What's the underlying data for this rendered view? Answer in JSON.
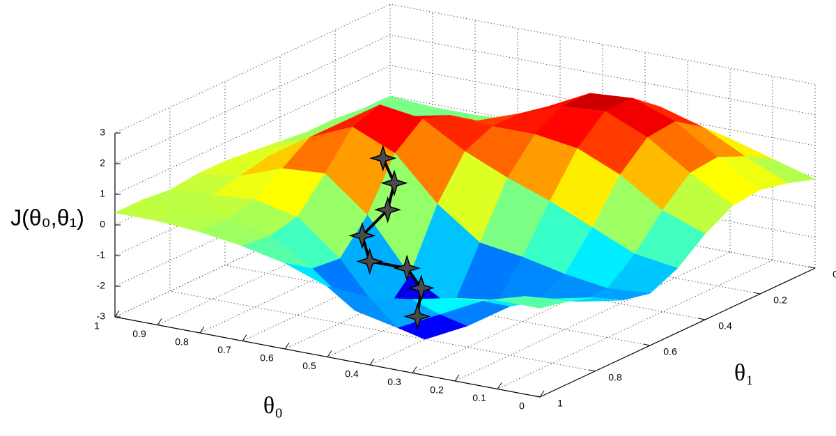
{
  "chart_data": {
    "type": "surface",
    "colormap": "jet",
    "zlabel": "J(θ₀,θ₁)",
    "xlabel": "θ₀",
    "ylabel": "θ₁",
    "x": [
      0,
      0.1,
      0.2,
      0.3,
      0.4,
      0.5,
      0.6,
      0.7,
      0.8,
      0.9,
      1
    ],
    "y": [
      0,
      0.1,
      0.2,
      0.3,
      0.4,
      0.5,
      0.6,
      0.7,
      0.8,
      0.9,
      1
    ],
    "z": [
      [
        -0.1,
        0.2,
        0.4,
        0.3,
        -0.2,
        -0.9,
        -1.3,
        -1.1,
        -0.6,
        -0.3,
        -0.1
      ],
      [
        0.3,
        0.8,
        1.2,
        1.1,
        0.3,
        -0.7,
        -1.4,
        -1.4,
        -0.9,
        -0.4,
        -0.1
      ],
      [
        0.7,
        1.5,
        2.1,
        2.0,
        1.2,
        -0.1,
        -1.2,
        -1.6,
        -1.4,
        -0.8,
        -0.3
      ],
      [
        1.0,
        1.9,
        2.6,
        2.6,
        1.8,
        0.5,
        -0.9,
        -2.1,
        -2.3,
        -1.5,
        -0.6
      ],
      [
        0.9,
        1.8,
        2.5,
        2.5,
        2.0,
        1.0,
        -0.7,
        -2.4,
        -3.0,
        -2.2,
        -0.8
      ],
      [
        0.6,
        1.3,
        1.8,
        2.0,
        2.0,
        1.6,
        0.3,
        -1.6,
        -2.5,
        -1.9,
        -0.7
      ],
      [
        0.3,
        0.7,
        1.1,
        1.5,
        2.1,
        2.4,
        1.7,
        0.1,
        -0.9,
        -0.8,
        -0.2
      ],
      [
        0.0,
        0.2,
        0.5,
        1.0,
        1.8,
        2.6,
        2.3,
        1.2,
        0.2,
        0.0,
        0.1
      ],
      [
        -0.1,
        0.0,
        0.2,
        0.5,
        1.1,
        1.7,
        1.7,
        1.1,
        0.5,
        0.3,
        0.3
      ],
      [
        -0.1,
        0.0,
        0.1,
        0.2,
        0.5,
        0.8,
        0.8,
        0.6,
        0.4,
        0.3,
        0.4
      ],
      [
        0.0,
        0.0,
        0.1,
        0.1,
        0.2,
        0.3,
        0.4,
        0.4,
        0.3,
        0.4,
        0.4
      ]
    ],
    "path": {
      "color": "#000000",
      "marker_color": "#4a4a4a",
      "x": [
        0.57,
        0.55,
        0.52,
        0.58,
        0.53,
        0.52,
        0.48,
        0.45
      ],
      "y": [
        0.69,
        0.68,
        0.75,
        0.75,
        0.8,
        0.68,
        0.69,
        0.75
      ],
      "z": [
        2.0,
        1.2,
        0.7,
        -0.3,
        -0.8,
        -1.5,
        -2.0,
        -2.6
      ]
    },
    "xlim": [
      0,
      1
    ],
    "ylim": [
      0,
      1
    ],
    "zlim": [
      -3,
      3
    ],
    "xticks": [
      0,
      0.1,
      0.2,
      0.3,
      0.4,
      0.5,
      0.6,
      0.7,
      0.8,
      0.9,
      1
    ],
    "yticks": [
      0,
      0.2,
      0.4,
      0.6,
      0.8,
      1
    ],
    "zticks": [
      -3,
      -2,
      -1,
      0,
      1,
      2,
      3
    ],
    "grid": true
  }
}
